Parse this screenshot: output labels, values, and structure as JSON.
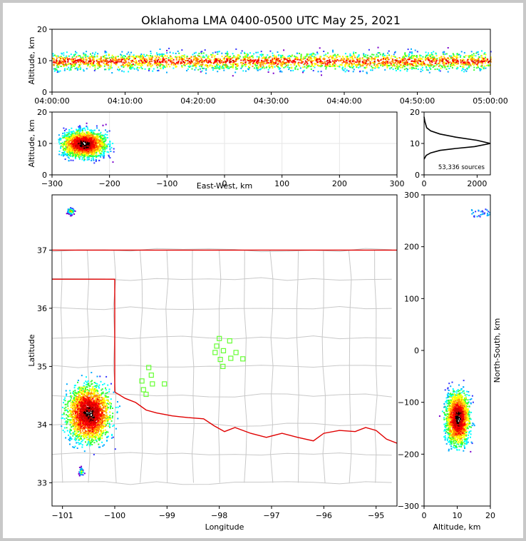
{
  "title": "Oklahoma LMA 0400-0500 UTC May 25, 2021",
  "colors": {
    "state_border": "#e00000",
    "county_border": "#c8c8c8",
    "station": "#66ff33",
    "background": "#ffffff"
  },
  "chart_data": [
    {
      "id": "time-height",
      "type": "heatmap",
      "ylabel": "Altitude, km",
      "xlim": [
        "04:00:00",
        "05:00:00"
      ],
      "x_ticks": [
        "04:00:00",
        "04:10:00",
        "04:20:00",
        "04:30:00",
        "04:40:00",
        "04:50:00",
        "05:00:00"
      ],
      "ylim": [
        0,
        20
      ],
      "y_ticks": [
        "0",
        "10",
        "20"
      ],
      "altitude_range_km": [
        5,
        15
      ],
      "core_altitude_km": 10
    },
    {
      "id": "east-west-height",
      "type": "heatmap",
      "xlabel": "East-West, km",
      "ylabel": "Altitude, km",
      "xlim": [
        -300,
        300
      ],
      "x_ticks": [
        "−300",
        "−200",
        "−100",
        "0",
        "100",
        "200",
        "300"
      ],
      "ylim": [
        0,
        20
      ],
      "y_ticks": [
        "0",
        "10",
        "20"
      ],
      "clusters": [
        {
          "x": [
            -290,
            -170
          ],
          "core_x": -245,
          "core_z": 10
        }
      ]
    },
    {
      "id": "altitude-histogram",
      "type": "line",
      "annotation": "53,336 sources",
      "xlim": [
        0,
        2500
      ],
      "x_ticks": [
        "0",
        "2000"
      ],
      "ylim": [
        0,
        20
      ],
      "y_ticks": [
        "0",
        "10",
        "20"
      ],
      "points": [
        {
          "x": 0,
          "z": 18.5
        },
        {
          "x": 30,
          "z": 17
        },
        {
          "x": 100,
          "z": 15
        },
        {
          "x": 250,
          "z": 14
        },
        {
          "x": 600,
          "z": 13
        },
        {
          "x": 1200,
          "z": 12
        },
        {
          "x": 2000,
          "z": 11
        },
        {
          "x": 2500,
          "z": 10
        },
        {
          "x": 1900,
          "z": 9
        },
        {
          "x": 1200,
          "z": 8.4
        },
        {
          "x": 600,
          "z": 7.8
        },
        {
          "x": 250,
          "z": 7
        },
        {
          "x": 80,
          "z": 6.2
        },
        {
          "x": 0,
          "z": 5
        }
      ]
    },
    {
      "id": "plan-view",
      "type": "heatmap",
      "xlabel": "Longitude",
      "ylabel": "Latitude",
      "xlim": [
        -101.2,
        -94.6
      ],
      "x_ticks": [
        "−101",
        "−100",
        "−99",
        "−98",
        "−97",
        "−96",
        "−95"
      ],
      "ylim": [
        32.6,
        37.95
      ],
      "y_ticks": [
        "33",
        "34",
        "35",
        "36",
        "37"
      ],
      "sources": [
        {
          "lon": -100.5,
          "lat": 34.2
        },
        {
          "lon": -100.85,
          "lat": 37.68
        },
        {
          "lon": -100.65,
          "lat": 33.2
        }
      ],
      "stations": [
        [
          -98.0,
          35.48
        ],
        [
          -97.8,
          35.44
        ],
        [
          -98.05,
          35.35
        ],
        [
          -98.08,
          35.24
        ],
        [
          -97.92,
          35.27
        ],
        [
          -97.68,
          35.24
        ],
        [
          -97.98,
          35.12
        ],
        [
          -97.78,
          35.14
        ],
        [
          -97.55,
          35.13
        ],
        [
          -97.93,
          35.0
        ],
        [
          -99.35,
          34.98
        ],
        [
          -99.3,
          34.85
        ],
        [
          -99.48,
          34.75
        ],
        [
          -99.28,
          34.7
        ],
        [
          -99.05,
          34.7
        ],
        [
          -99.45,
          34.6
        ],
        [
          -99.4,
          34.52
        ]
      ]
    },
    {
      "id": "north-south-height",
      "type": "heatmap",
      "xlabel": "Altitude, km",
      "ylabel": "North-South, km",
      "xlim": [
        0,
        20
      ],
      "x_ticks": [
        "0",
        "10",
        "20"
      ],
      "ylim": [
        -300,
        300
      ],
      "y_ticks": [
        "−300",
        "−200",
        "−100",
        "0",
        "100",
        "200",
        "300"
      ],
      "clusters": [
        {
          "ns": [
            -195,
            -40
          ],
          "core_ns": -130,
          "core_z": 10
        }
      ]
    }
  ]
}
